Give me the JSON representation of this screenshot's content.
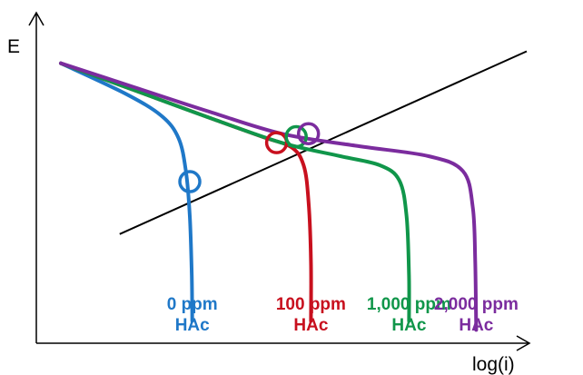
{
  "chart_data": {
    "type": "line",
    "title": "",
    "xlabel": "log(i)",
    "ylabel": "E",
    "grid": false,
    "legend": "labels under curve tails",
    "anodic_line": {
      "color": "#000000",
      "x": [
        0.17,
        1.0
      ],
      "y": [
        0.34,
        0.95
      ]
    },
    "series": [
      {
        "line1": "0 ppm",
        "line2": "HAc",
        "color": "#1f78c8",
        "x": [
          0.05,
          0.18,
          0.255,
          0.29,
          0.305,
          0.313,
          0.317,
          0.318
        ],
        "y": [
          0.91,
          0.81,
          0.735,
          0.66,
          0.55,
          0.4,
          0.2,
          0.05
        ],
        "marker": [
          0.313,
          0.515
        ]
      },
      {
        "line1": "100 ppm",
        "line2": "HAc",
        "color": "#c8101e",
        "x": [
          0.05,
          0.2,
          0.35,
          0.46,
          0.52,
          0.545,
          0.555,
          0.56,
          0.56
        ],
        "y": [
          0.91,
          0.82,
          0.73,
          0.665,
          0.63,
          0.57,
          0.45,
          0.25,
          0.05
        ],
        "marker": [
          0.49,
          0.645
        ]
      },
      {
        "line1": "1,000 ppm",
        "line2": "HAc",
        "color": "#10964a",
        "x": [
          0.05,
          0.2,
          0.35,
          0.5,
          0.62,
          0.7,
          0.74,
          0.755,
          0.76,
          0.76
        ],
        "y": [
          0.91,
          0.82,
          0.73,
          0.645,
          0.6,
          0.57,
          0.52,
          0.4,
          0.2,
          0.05
        ],
        "marker": [
          0.53,
          0.665
        ]
      },
      {
        "line1": "2,000 ppm",
        "line2": "HAc",
        "color": "#7b2c9e",
        "x": [
          0.05,
          0.2,
          0.35,
          0.5,
          0.65,
          0.8,
          0.87,
          0.89,
          0.895,
          0.897
        ],
        "y": [
          0.91,
          0.83,
          0.75,
          0.675,
          0.635,
          0.6,
          0.55,
          0.43,
          0.25,
          0.02
        ],
        "marker": [
          0.555,
          0.675
        ]
      }
    ]
  }
}
